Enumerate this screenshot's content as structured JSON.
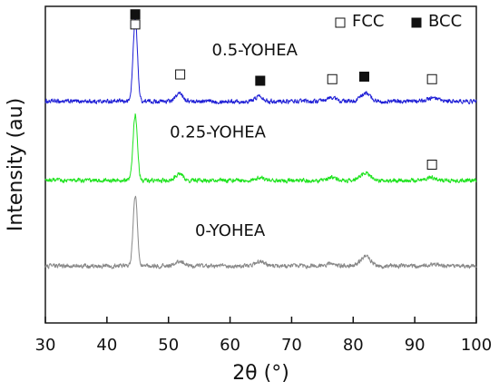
{
  "chart_data": {
    "type": "line",
    "xlabel": "2θ (°)",
    "ylabel": "Intensity (au)",
    "xlim": [
      30,
      100
    ],
    "x_ticks": [
      30,
      40,
      50,
      60,
      70,
      80,
      90,
      100
    ],
    "y_ticks_shown": false,
    "legend": {
      "position": "top-right",
      "entries": [
        {
          "label": "FCC",
          "marker": "open-square"
        },
        {
          "label": "BCC",
          "marker": "filled-square"
        }
      ]
    },
    "series": [
      {
        "name": "0.5-YOHEA",
        "color": "#1f1fd6",
        "baseline": 0.7,
        "noise": 0.01,
        "peaks": [
          {
            "x": 44.6,
            "height": 0.26,
            "width": 0.35
          },
          {
            "x": 51.8,
            "height": 0.025,
            "width": 0.6
          },
          {
            "x": 64.8,
            "height": 0.018,
            "width": 0.6
          },
          {
            "x": 76.5,
            "height": 0.012,
            "width": 0.7
          },
          {
            "x": 82.0,
            "height": 0.025,
            "width": 0.8
          },
          {
            "x": 92.8,
            "height": 0.01,
            "width": 0.8
          }
        ]
      },
      {
        "name": "0.25-YOHEA",
        "color": "#1ee31e",
        "baseline": 0.45,
        "noise": 0.01,
        "peaks": [
          {
            "x": 44.6,
            "height": 0.21,
            "width": 0.35
          },
          {
            "x": 51.8,
            "height": 0.02,
            "width": 0.6
          },
          {
            "x": 64.8,
            "height": 0.01,
            "width": 0.6
          },
          {
            "x": 76.5,
            "height": 0.01,
            "width": 0.7
          },
          {
            "x": 82.0,
            "height": 0.022,
            "width": 0.8
          },
          {
            "x": 92.8,
            "height": 0.008,
            "width": 0.8
          }
        ]
      },
      {
        "name": "0-YOHEA",
        "color": "#888888",
        "baseline": 0.18,
        "noise": 0.01,
        "peaks": [
          {
            "x": 44.6,
            "height": 0.22,
            "width": 0.35
          },
          {
            "x": 51.8,
            "height": 0.015,
            "width": 0.6
          },
          {
            "x": 64.8,
            "height": 0.015,
            "width": 0.6
          },
          {
            "x": 76.5,
            "height": 0.008,
            "width": 0.7
          },
          {
            "x": 82.0,
            "height": 0.03,
            "width": 0.8
          },
          {
            "x": 92.8,
            "height": 0.006,
            "width": 0.8
          }
        ]
      }
    ],
    "annotations": {
      "series_labels": [
        {
          "text": "0.5-YOHEA",
          "series": "0.5-YOHEA",
          "x": 64.0,
          "y": 0.86
        },
        {
          "text": "0.25-YOHEA",
          "series": "0.25-YOHEA",
          "x": 58.0,
          "y": 0.6
        },
        {
          "text": "0-YOHEA",
          "series": "0-YOHEA",
          "x": 60.0,
          "y": 0.29
        }
      ],
      "phase_markers": [
        {
          "x": 44.6,
          "y": 0.975,
          "type": "filled-square"
        },
        {
          "x": 44.6,
          "y": 0.943,
          "type": "open-square"
        },
        {
          "x": 51.9,
          "y": 0.785,
          "type": "open-square"
        },
        {
          "x": 64.9,
          "y": 0.765,
          "type": "filled-square"
        },
        {
          "x": 76.6,
          "y": 0.77,
          "type": "open-square"
        },
        {
          "x": 81.8,
          "y": 0.778,
          "type": "filled-square"
        },
        {
          "x": 92.8,
          "y": 0.77,
          "type": "open-square"
        },
        {
          "x": 92.8,
          "y": 0.5,
          "type": "open-square"
        }
      ]
    }
  }
}
